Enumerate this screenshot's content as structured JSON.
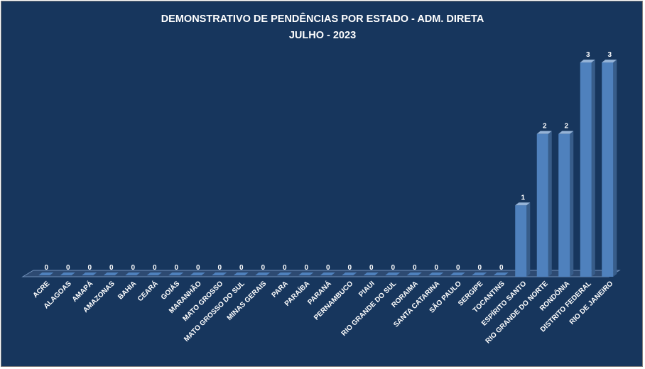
{
  "chart_data": {
    "type": "bar",
    "title": "DEMONSTRATIVO DE PENDÊNCIAS POR ESTADO - ADM. DIRETA",
    "subtitle": "JULHO - 2023",
    "categories": [
      "ACRE",
      "ALAGOAS",
      "AMAPÁ",
      "AMAZONAS",
      "BAHIA",
      "CEARÁ",
      "GOIÁS",
      "MARANHÃO",
      "MATO GROSSO",
      "MATO GROSSO  DO SUL",
      "MINAS GERAIS",
      "PARA",
      "PARAÍBA",
      "PARANÁ",
      "PERNAMBUCO",
      "PIAUI",
      "RIO GRANDE  DO SUL",
      "RORAIMA",
      "SANTA CATARINA",
      "SÃO PAULO",
      "SERGIPE",
      "TOCANTINS",
      "ESPÍRITO SANTO",
      "RIO GRANDE DO NORTE",
      "RONDÔNIA",
      "DISTRITO FEDERAL",
      "RIO DE JANEIRO"
    ],
    "values": [
      0,
      0,
      0,
      0,
      0,
      0,
      0,
      0,
      0,
      0,
      0,
      0,
      0,
      0,
      0,
      0,
      0,
      0,
      0,
      0,
      0,
      0,
      1,
      2,
      2,
      3,
      3
    ],
    "ylim": [
      0,
      3
    ],
    "grid": false,
    "legend": "none",
    "colors": {
      "background": "#17365d",
      "bar": "#4f81bd",
      "bar_side": "#385d8a",
      "bar_top": "#95b3d7",
      "text": "#ffffff"
    }
  }
}
